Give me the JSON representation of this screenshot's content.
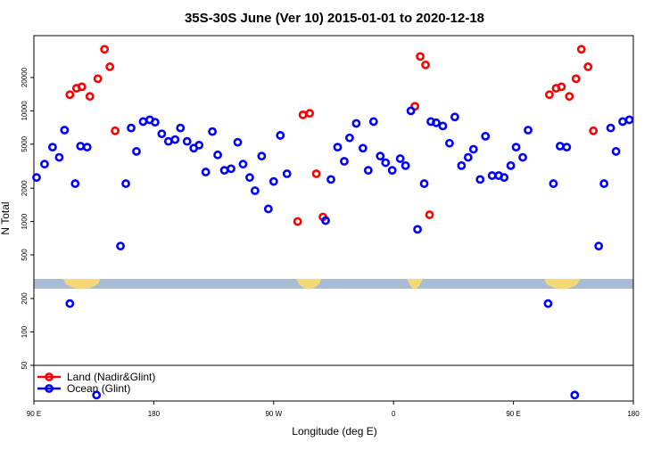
{
  "chart_data": {
    "type": "scatter",
    "title": "35S-30S June (Ver 10)   2015-01-01 to 2020-12-18",
    "xlabel": "Longitude (deg E)",
    "ylabel": "N Total",
    "y_scale": "log",
    "x_range_note": "90 E to 180 via dateline, 0, 90 E, 180",
    "x_ticks": [
      {
        "x": 90,
        "label": "90 E"
      },
      {
        "x": 180,
        "label": "180"
      },
      {
        "x": 270,
        "label": "90 W"
      },
      {
        "x": 360,
        "label": "0"
      },
      {
        "x": 450,
        "label": "90 E"
      },
      {
        "x": 540,
        "label": "180"
      }
    ],
    "xlim": [
      90,
      540
    ],
    "y_ticks_upper": [
      500,
      1000,
      2000,
      5000,
      10000,
      20000
    ],
    "y_ticks_lower": [
      50,
      100,
      200
    ],
    "legend": {
      "placement": "bottom-left",
      "entries": [
        {
          "label": "Land (Nadir&Glint)",
          "color": "#ff0000"
        },
        {
          "label": "Ocean (Glint)",
          "color": "#0000ff"
        }
      ]
    },
    "land_band_color": "#f5d77a",
    "ocean_band_color": "#a8bcd6",
    "series": [
      {
        "name": "Land (Nadir&Glint)",
        "color": "#ff0000",
        "points": [
          {
            "x": 117,
            "y": 14000
          },
          {
            "x": 122,
            "y": 16000
          },
          {
            "x": 126,
            "y": 16500
          },
          {
            "x": 132,
            "y": 13500
          },
          {
            "x": 138,
            "y": 19500
          },
          {
            "x": 143,
            "y": 36000
          },
          {
            "x": 147,
            "y": 25000
          },
          {
            "x": 151,
            "y": 6600
          },
          {
            "x": 288,
            "y": 1000
          },
          {
            "x": 292,
            "y": 9200
          },
          {
            "x": 297,
            "y": 9500
          },
          {
            "x": 302,
            "y": 2700
          },
          {
            "x": 307,
            "y": 1100
          },
          {
            "x": 376,
            "y": 11000
          },
          {
            "x": 380,
            "y": 31000
          },
          {
            "x": 384,
            "y": 26000
          },
          {
            "x": 387,
            "y": 1150
          },
          {
            "x": 477,
            "y": 14000
          },
          {
            "x": 482,
            "y": 16000
          },
          {
            "x": 486,
            "y": 16500
          },
          {
            "x": 492,
            "y": 13500
          },
          {
            "x": 497,
            "y": 19500
          },
          {
            "x": 501,
            "y": 36000
          },
          {
            "x": 506,
            "y": 25000
          },
          {
            "x": 510,
            "y": 6600
          }
        ]
      },
      {
        "name": "Ocean (Glint)",
        "color": "#0000ff",
        "points": [
          {
            "x": 92,
            "y": 2500
          },
          {
            "x": 98,
            "y": 3300
          },
          {
            "x": 104,
            "y": 4700
          },
          {
            "x": 109,
            "y": 3800
          },
          {
            "x": 113,
            "y": 6700
          },
          {
            "x": 117,
            "y": 180
          },
          {
            "x": 121,
            "y": 2200
          },
          {
            "x": 125,
            "y": 4800
          },
          {
            "x": 130,
            "y": 4700
          },
          {
            "x": 137,
            "y": 27
          },
          {
            "x": 155,
            "y": 600
          },
          {
            "x": 159,
            "y": 2200
          },
          {
            "x": 163,
            "y": 7000
          },
          {
            "x": 167,
            "y": 4300
          },
          {
            "x": 172,
            "y": 8000
          },
          {
            "x": 177,
            "y": 8300
          },
          {
            "x": 181,
            "y": 7900
          },
          {
            "x": 186,
            "y": 6200
          },
          {
            "x": 191,
            "y": 5300
          },
          {
            "x": 196,
            "y": 5500
          },
          {
            "x": 200,
            "y": 7000
          },
          {
            "x": 205,
            "y": 5300
          },
          {
            "x": 210,
            "y": 4600
          },
          {
            "x": 214,
            "y": 4900
          },
          {
            "x": 219,
            "y": 2800
          },
          {
            "x": 224,
            "y": 6500
          },
          {
            "x": 228,
            "y": 4000
          },
          {
            "x": 233,
            "y": 2900
          },
          {
            "x": 238,
            "y": 3000
          },
          {
            "x": 243,
            "y": 5200
          },
          {
            "x": 247,
            "y": 3300
          },
          {
            "x": 252,
            "y": 2500
          },
          {
            "x": 256,
            "y": 1900
          },
          {
            "x": 261,
            "y": 3900
          },
          {
            "x": 266,
            "y": 1300
          },
          {
            "x": 270,
            "y": 2300
          },
          {
            "x": 275,
            "y": 6000
          },
          {
            "x": 280,
            "y": 2700
          },
          {
            "x": 309,
            "y": 1020
          },
          {
            "x": 313,
            "y": 2400
          },
          {
            "x": 318,
            "y": 4700
          },
          {
            "x": 323,
            "y": 3500
          },
          {
            "x": 327,
            "y": 5700
          },
          {
            "x": 332,
            "y": 7700
          },
          {
            "x": 337,
            "y": 4600
          },
          {
            "x": 341,
            "y": 2900
          },
          {
            "x": 345,
            "y": 8000
          },
          {
            "x": 350,
            "y": 3900
          },
          {
            "x": 354,
            "y": 3400
          },
          {
            "x": 359,
            "y": 2900
          },
          {
            "x": 365,
            "y": 3700
          },
          {
            "x": 369,
            "y": 3200
          },
          {
            "x": 373,
            "y": 10000
          },
          {
            "x": 378,
            "y": 850
          },
          {
            "x": 383,
            "y": 2200
          },
          {
            "x": 388,
            "y": 8000
          },
          {
            "x": 392,
            "y": 7800
          },
          {
            "x": 397,
            "y": 7300
          },
          {
            "x": 402,
            "y": 5100
          },
          {
            "x": 406,
            "y": 8800
          },
          {
            "x": 411,
            "y": 3200
          },
          {
            "x": 416,
            "y": 3800
          },
          {
            "x": 420,
            "y": 4500
          },
          {
            "x": 425,
            "y": 2400
          },
          {
            "x": 429,
            "y": 5900
          },
          {
            "x": 434,
            "y": 2600
          },
          {
            "x": 439,
            "y": 2600
          },
          {
            "x": 443,
            "y": 2500
          },
          {
            "x": 448,
            "y": 3200
          },
          {
            "x": 452,
            "y": 4700
          },
          {
            "x": 457,
            "y": 3800
          },
          {
            "x": 461,
            "y": 6700
          },
          {
            "x": 476,
            "y": 180
          },
          {
            "x": 480,
            "y": 2200
          },
          {
            "x": 485,
            "y": 4800
          },
          {
            "x": 490,
            "y": 4700
          },
          {
            "x": 496,
            "y": 27
          },
          {
            "x": 514,
            "y": 600
          },
          {
            "x": 518,
            "y": 2200
          },
          {
            "x": 523,
            "y": 7000
          },
          {
            "x": 527,
            "y": 4300
          },
          {
            "x": 532,
            "y": 8000
          },
          {
            "x": 537,
            "y": 8300
          }
        ]
      }
    ]
  }
}
